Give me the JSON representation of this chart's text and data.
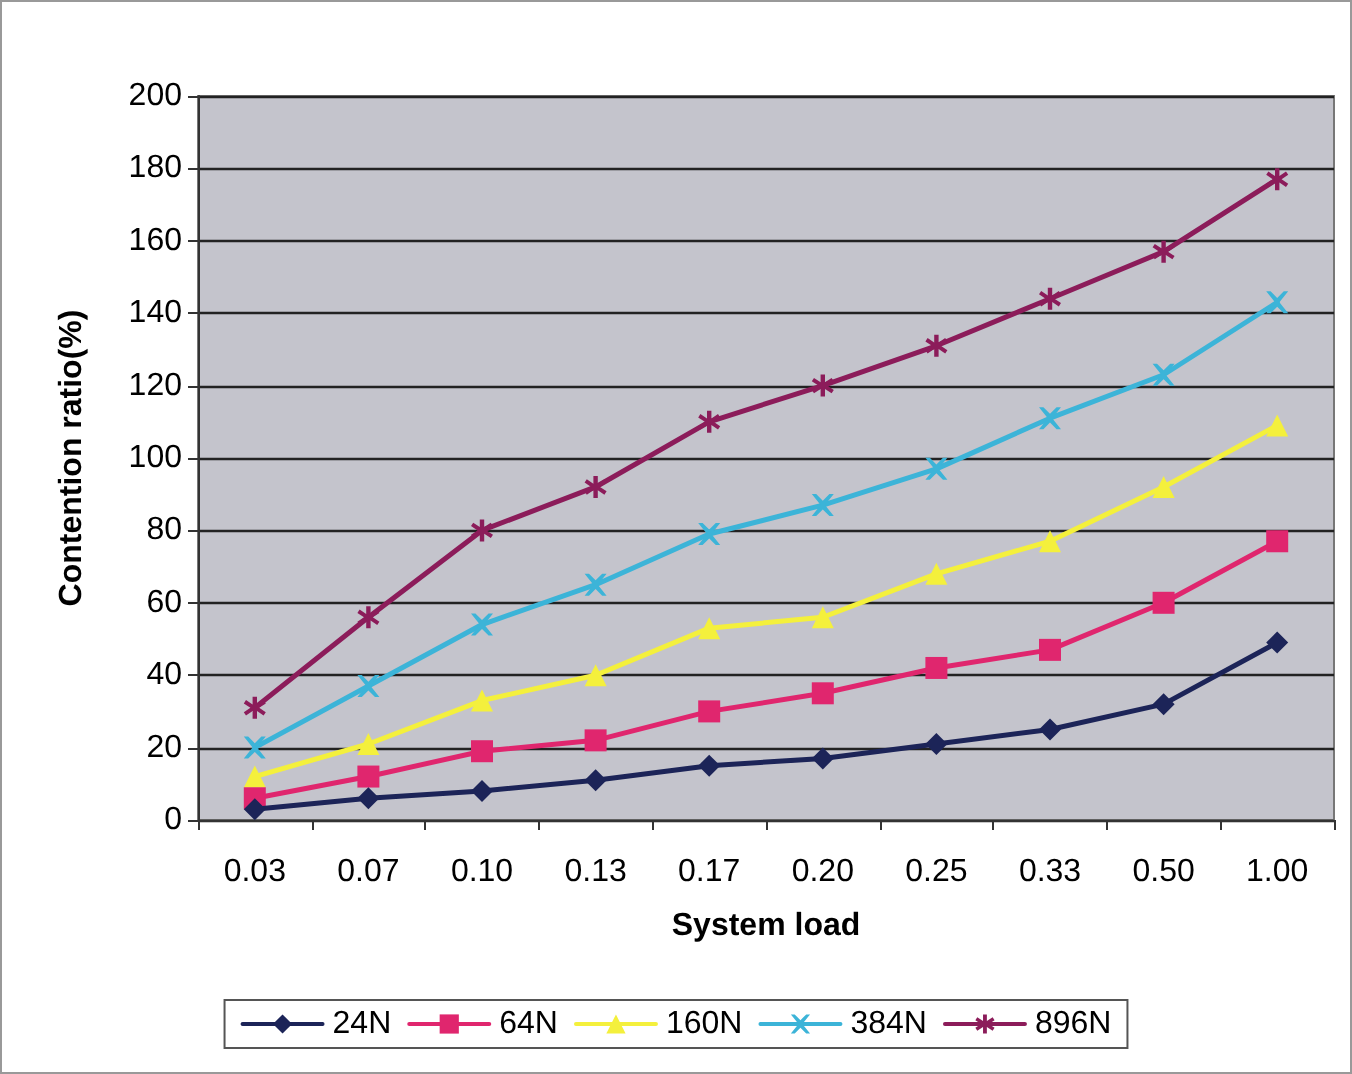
{
  "chart_data": {
    "type": "line",
    "xlabel": "System load",
    "ylabel": "Contention ratio(%)",
    "categories": [
      "0.03",
      "0.07",
      "0.10",
      "0.13",
      "0.17",
      "0.20",
      "0.25",
      "0.33",
      "0.50",
      "1.00"
    ],
    "series": [
      {
        "name": "24N",
        "color": "#1c2458",
        "marker": "diamond",
        "values": [
          3,
          6,
          8,
          11,
          15,
          17,
          21,
          25,
          32,
          49
        ]
      },
      {
        "name": "64N",
        "color": "#e0266e",
        "marker": "square",
        "values": [
          6,
          12,
          19,
          22,
          30,
          35,
          42,
          47,
          60,
          77
        ]
      },
      {
        "name": "160N",
        "color": "#f4f03c",
        "marker": "triangle",
        "values": [
          12,
          21,
          33,
          40,
          53,
          56,
          68,
          77,
          92,
          109
        ]
      },
      {
        "name": "384N",
        "color": "#3cb4d8",
        "marker": "cross",
        "values": [
          20,
          37,
          54,
          65,
          79,
          87,
          97,
          111,
          123,
          143
        ]
      },
      {
        "name": "896N",
        "color": "#8c1c5a",
        "marker": "star",
        "values": [
          31,
          56,
          80,
          92,
          110,
          120,
          131,
          144,
          157,
          177
        ]
      }
    ],
    "ylim": [
      0,
      200
    ],
    "yticks": [
      0,
      20,
      40,
      60,
      80,
      100,
      120,
      140,
      160,
      180,
      200
    ],
    "grid": "y",
    "legend": "bottom",
    "line_style": "solid"
  }
}
